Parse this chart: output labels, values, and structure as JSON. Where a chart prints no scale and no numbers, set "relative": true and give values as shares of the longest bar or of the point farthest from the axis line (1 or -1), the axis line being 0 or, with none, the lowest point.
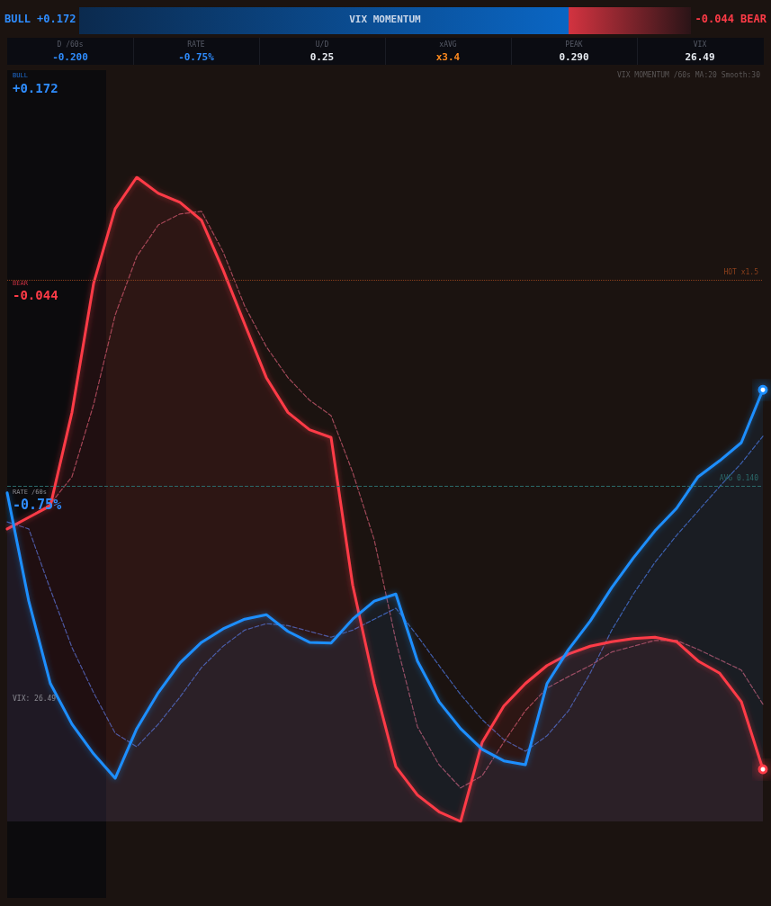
{
  "chart_data": {
    "type": "area",
    "title": "VIX MOMENTUM",
    "subtitle": "VIX MOMENTUM /60s  MA:20  Smooth:30",
    "relative": true,
    "categories": [
      null,
      null,
      null,
      null,
      null,
      null,
      null,
      null,
      null,
      null,
      null,
      null,
      null,
      null,
      null,
      null,
      null,
      null,
      null,
      null,
      null,
      null,
      null,
      null,
      null,
      null,
      null,
      null,
      null,
      null,
      null,
      null,
      null,
      null,
      null,
      null
    ],
    "series": [
      {
        "color": "#ff3b47",
        "values": [
          0.454,
          0.472,
          0.49,
          0.635,
          0.835,
          0.951,
          1,
          0.975,
          0.961,
          0.933,
          0.856,
          0.772,
          0.689,
          0.635,
          0.608,
          0.596,
          0.367,
          0.214,
          0.085,
          0.041,
          0.015,
          0,
          0.123,
          0.179,
          0.214,
          0.242,
          0.26,
          0.272,
          0.279,
          0.284,
          0.286,
          0.279,
          0.249,
          0.23,
          0.186,
          0.081
        ]
      },
      {
        "color": "#1e8fff",
        "values": [
          0.51,
          0.342,
          0.214,
          0.151,
          0.105,
          0.067,
          0.144,
          0.2,
          0.246,
          0.278,
          0.299,
          0.314,
          0.321,
          0.295,
          0.278,
          0.277,
          0.314,
          0.342,
          0.353,
          0.249,
          0.186,
          0.144,
          0.112,
          0.094,
          0.088,
          0.214,
          0.267,
          0.311,
          0.363,
          0.409,
          0.451,
          0.486,
          0.535,
          0.56,
          0.588,
          0.67
        ]
      },
      {
        "type": "line",
        "color": "#c0566a",
        "line_style": "dashed",
        "values": [
          0.454,
          0.472,
          0.493,
          0.535,
          0.647,
          0.786,
          0.877,
          0.926,
          0.943,
          0.947,
          0.884,
          0.8,
          0.737,
          0.689,
          0.654,
          0.63,
          0.542,
          0.437,
          0.281,
          0.147,
          0.088,
          0.052,
          0.071,
          0.123,
          0.172,
          0.207,
          0.225,
          0.242,
          0.263,
          0.272,
          0.281,
          0.281,
          0.267,
          0.251,
          0.235,
          0.182
        ]
      },
      {
        "type": "line",
        "color": "#4a6fd0",
        "line_style": "dashed",
        "values": [
          0.465,
          0.454,
          0.36,
          0.27,
          0.2,
          0.137,
          0.116,
          0.151,
          0.193,
          0.239,
          0.272,
          0.297,
          0.307,
          0.304,
          0.295,
          0.286,
          0.297,
          0.314,
          0.331,
          0.288,
          0.242,
          0.197,
          0.158,
          0.127,
          0.109,
          0.133,
          0.172,
          0.23,
          0.297,
          0.353,
          0.402,
          0.444,
          0.482,
          0.52,
          0.556,
          0.598
        ]
      }
    ],
    "ref_lines": [
      {
        "axis": "y",
        "value": 0.841,
        "label": "HOT x1.5",
        "color": "#8a3f1c",
        "line_style": "dotted"
      },
      {
        "axis": "y",
        "value": 0.52,
        "label": "AVG 0.140",
        "color": "#2b6a6a",
        "line_style": "dashed"
      }
    ],
    "annotations": [
      "BULL +0.172",
      "-0.044 BEAR",
      "D /60s",
      "-0.200",
      "RATE",
      "-0.75%",
      "U/D",
      "0.25",
      "xAVG",
      "x3.4",
      "PEAK",
      "0.290",
      "VIX",
      "26.49",
      "BULL",
      "+0.172",
      "BEAR",
      "-0.044",
      "RATE /60s",
      "-0.75%",
      "VIX: 26.49"
    ]
  }
}
